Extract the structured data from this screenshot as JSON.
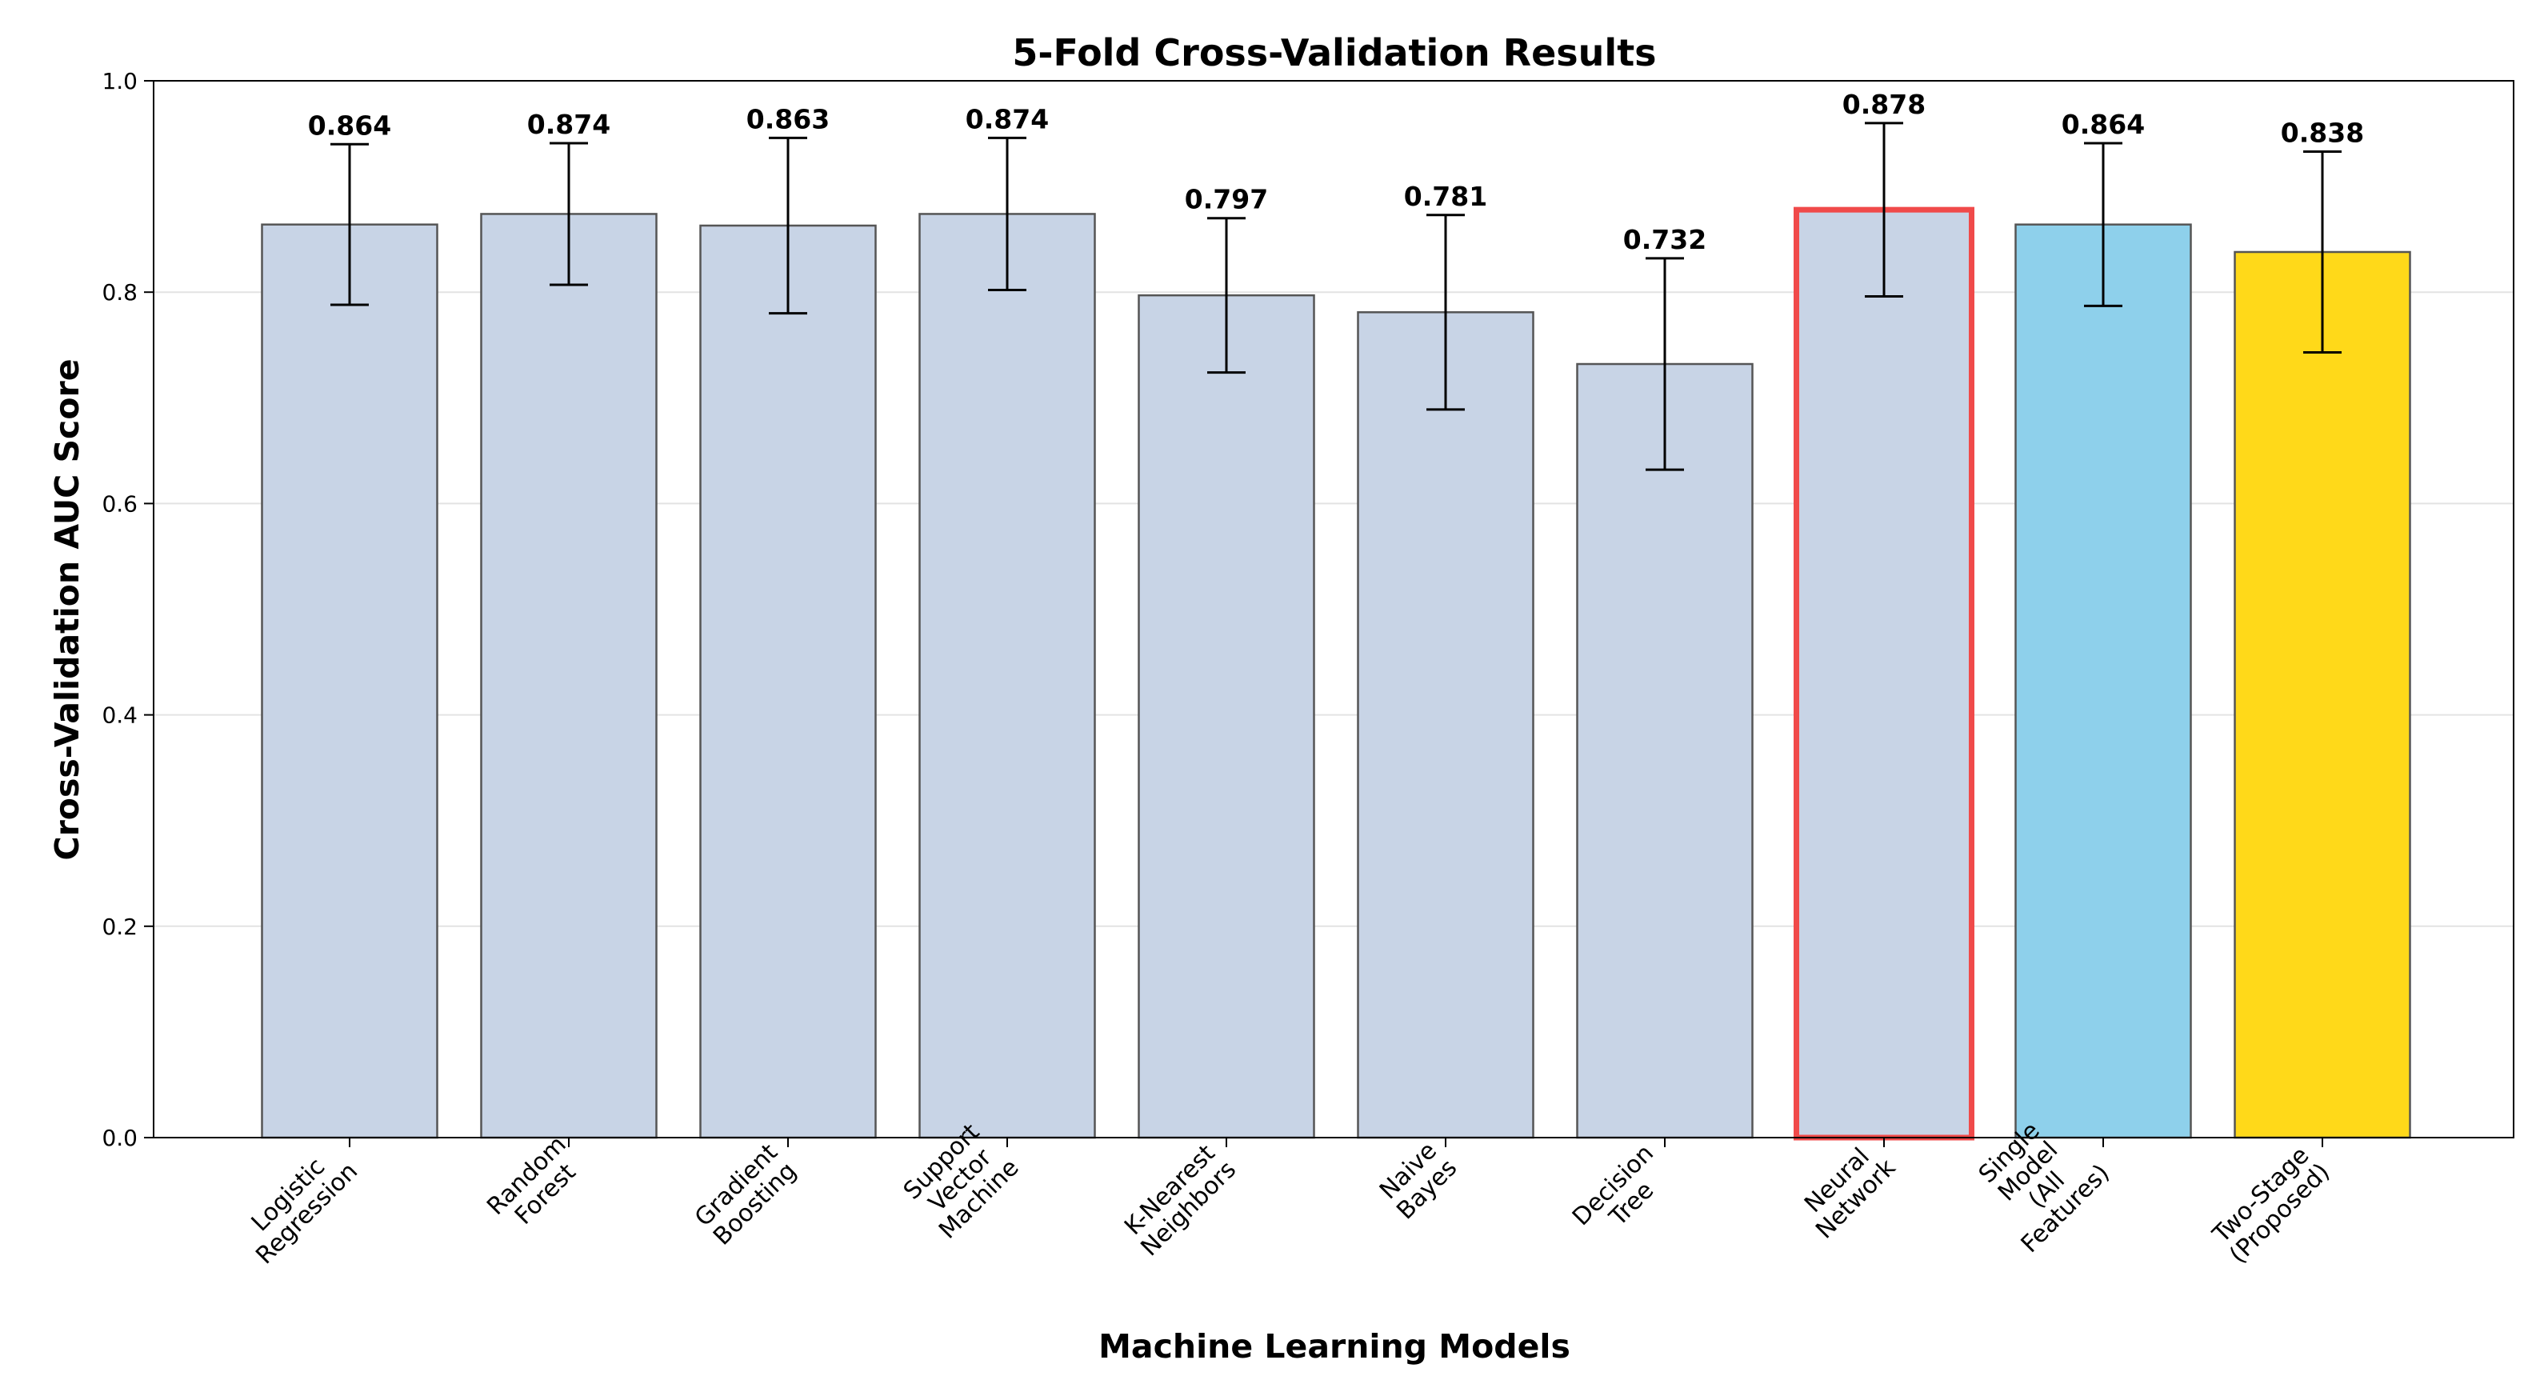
{
  "chart_data": {
    "type": "bar",
    "title": "5-Fold Cross-Validation Results",
    "xlabel": "Machine Learning Models",
    "ylabel": "Cross-Validation AUC Score",
    "ylim": [
      0.0,
      1.0
    ],
    "yticks": [
      "0.0",
      "0.2",
      "0.4",
      "0.6",
      "0.8",
      "1.0"
    ],
    "grid": "horizontal",
    "categories": [
      [
        "Logistic",
        "Regression"
      ],
      [
        "Random",
        "Forest"
      ],
      [
        "Gradient",
        "Boosting"
      ],
      [
        "Support",
        "Vector",
        "Machine"
      ],
      [
        "K-Nearest",
        "Neighbors"
      ],
      [
        "Naive",
        "Bayes"
      ],
      [
        "Decision",
        "Tree"
      ],
      [
        "Neural",
        "Network"
      ],
      [
        "Single",
        "Model",
        "(All",
        "Features)"
      ],
      [
        "Two-Stage",
        "(Proposed)"
      ]
    ],
    "values": [
      0.864,
      0.874,
      0.863,
      0.874,
      0.797,
      0.781,
      0.732,
      0.878,
      0.864,
      0.838
    ],
    "value_labels": [
      "0.864",
      "0.874",
      "0.863",
      "0.874",
      "0.797",
      "0.781",
      "0.732",
      "0.878",
      "0.864",
      "0.838"
    ],
    "errors": [
      0.076,
      0.067,
      0.083,
      0.072,
      0.073,
      0.092,
      0.1,
      0.082,
      0.077,
      0.095
    ],
    "colors": [
      "#c8d4e6",
      "#c8d4e6",
      "#c8d4e6",
      "#c8d4e6",
      "#c8d4e6",
      "#c8d4e6",
      "#c8d4e6",
      "#c8d4e6",
      "#8ed0eb",
      "#ffd919"
    ],
    "highlight": {
      "category_index": 7,
      "edge_color": "#f04a4a"
    }
  }
}
